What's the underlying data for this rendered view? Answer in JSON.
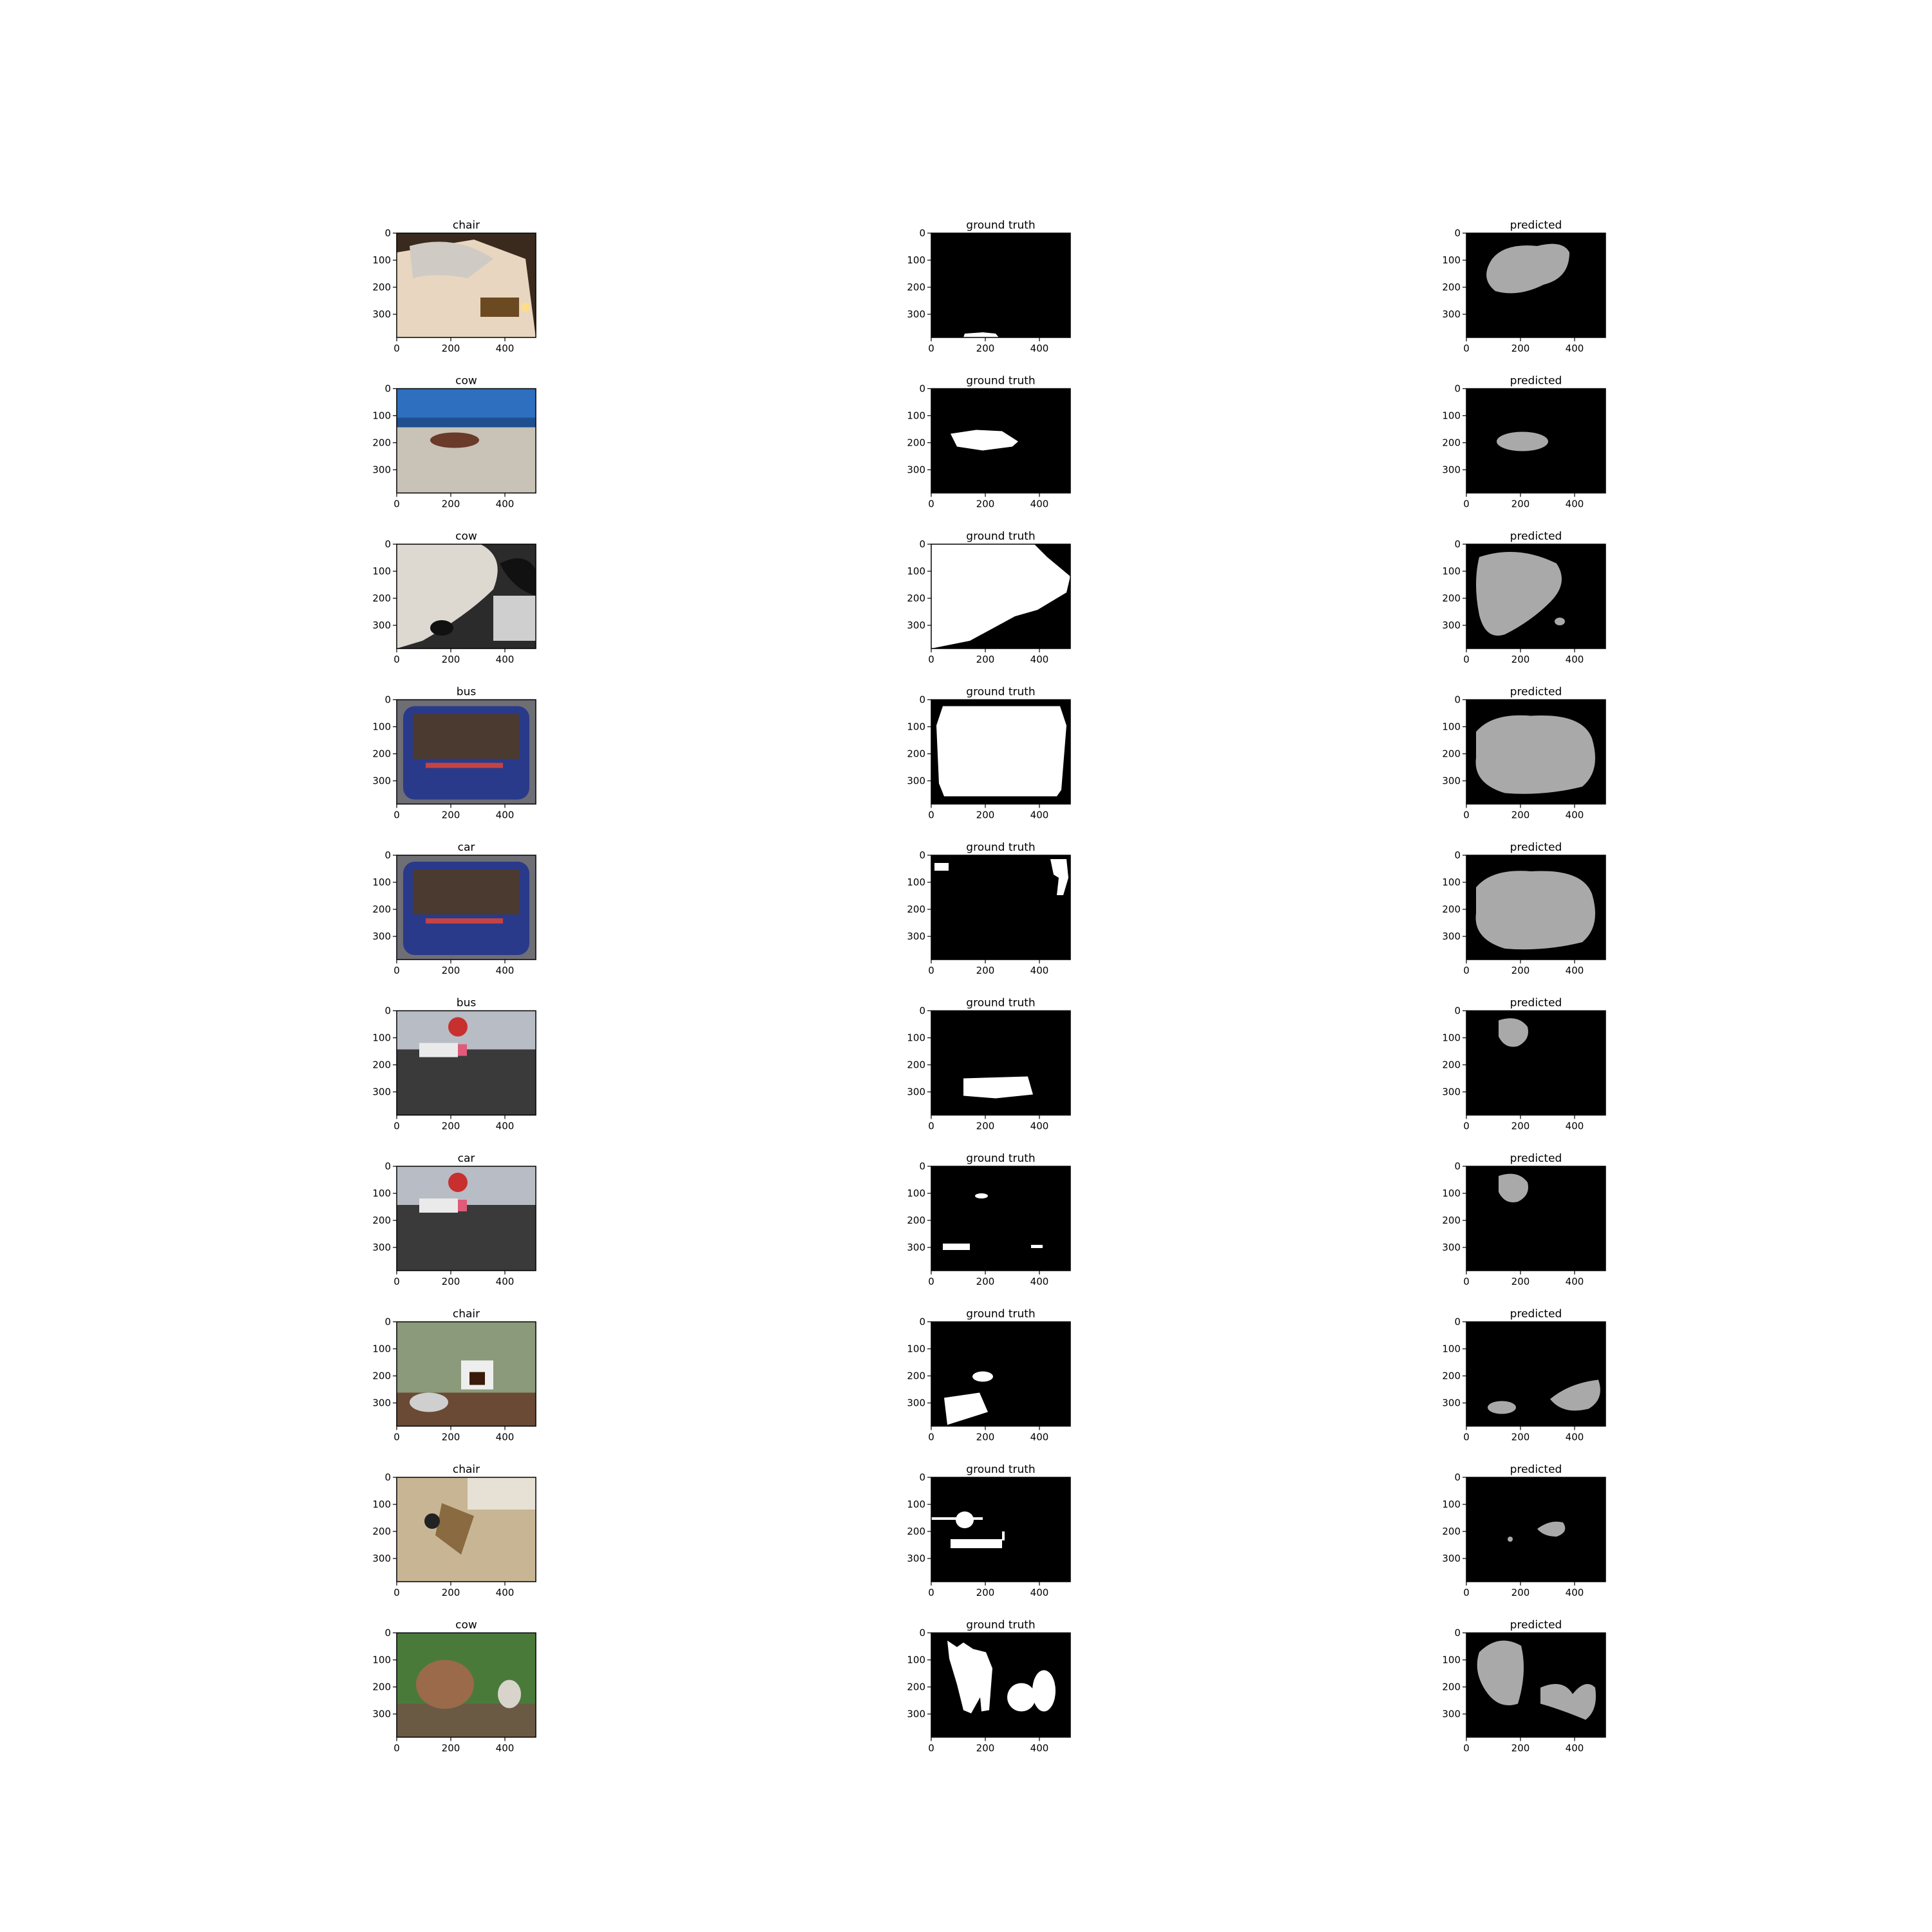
{
  "column_titles": {
    "ground_truth": "ground truth",
    "predicted": "predicted"
  },
  "axes": {
    "y_ticks": [
      "0",
      "100",
      "200",
      "300"
    ],
    "x_ticks": [
      "0",
      "200",
      "400"
    ]
  },
  "rows": [
    {
      "label": "chair"
    },
    {
      "label": "cow"
    },
    {
      "label": "cow"
    },
    {
      "label": "bus"
    },
    {
      "label": "car"
    },
    {
      "label": "bus"
    },
    {
      "label": "car"
    },
    {
      "label": "chair"
    },
    {
      "label": "chair"
    },
    {
      "label": "cow"
    }
  ],
  "colors": {
    "mask_bg": "#000000",
    "gt_fill": "#ffffff",
    "pred_fill": "#a9a9a9"
  }
}
